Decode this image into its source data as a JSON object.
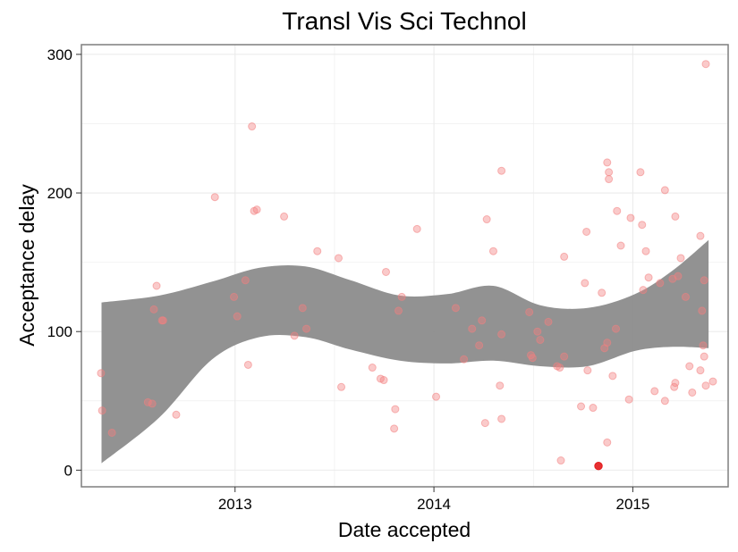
{
  "chart_data": {
    "type": "scatter",
    "title": "Transl Vis Sci Technol",
    "xlabel": "Date accepted",
    "ylabel": "Acceptance delay",
    "x_ticks": [
      {
        "label": "2013",
        "value": "2013-01-01"
      },
      {
        "label": "2014",
        "value": "2014-01-01"
      },
      {
        "label": "2015",
        "value": "2015-01-01"
      }
    ],
    "y_ticks": [
      0,
      100,
      200,
      300
    ],
    "xlim": [
      "2012-03-25",
      "2015-06-25"
    ],
    "ylim": [
      -12,
      307
    ],
    "grid": true,
    "colors": {
      "points": "#f28080",
      "highlight": "#e31a1c",
      "band": "#8c8c8c",
      "grid": "#ebebeb",
      "border": "#7f7f7f"
    },
    "points": [
      {
        "x": "2012-04-30",
        "y": 70
      },
      {
        "x": "2012-05-02",
        "y": 43
      },
      {
        "x": "2012-05-20",
        "y": 27
      },
      {
        "x": "2012-07-25",
        "y": 49
      },
      {
        "x": "2012-08-02",
        "y": 48
      },
      {
        "x": "2012-08-05",
        "y": 116
      },
      {
        "x": "2012-08-10",
        "y": 133
      },
      {
        "x": "2012-08-20",
        "y": 108
      },
      {
        "x": "2012-08-22",
        "y": 108
      },
      {
        "x": "2012-09-15",
        "y": 40
      },
      {
        "x": "2012-11-25",
        "y": 197
      },
      {
        "x": "2012-12-30",
        "y": 125
      },
      {
        "x": "2013-01-05",
        "y": 111
      },
      {
        "x": "2013-01-20",
        "y": 137
      },
      {
        "x": "2013-01-25",
        "y": 76
      },
      {
        "x": "2013-02-01",
        "y": 248
      },
      {
        "x": "2013-02-05",
        "y": 187
      },
      {
        "x": "2013-02-10",
        "y": 188
      },
      {
        "x": "2013-04-01",
        "y": 183
      },
      {
        "x": "2013-04-20",
        "y": 97
      },
      {
        "x": "2013-05-05",
        "y": 117
      },
      {
        "x": "2013-05-12",
        "y": 102
      },
      {
        "x": "2013-06-01",
        "y": 158
      },
      {
        "x": "2013-07-10",
        "y": 153
      },
      {
        "x": "2013-07-15",
        "y": 60
      },
      {
        "x": "2013-09-10",
        "y": 74
      },
      {
        "x": "2013-09-25",
        "y": 66
      },
      {
        "x": "2013-10-01",
        "y": 65
      },
      {
        "x": "2013-10-05",
        "y": 143
      },
      {
        "x": "2013-10-20",
        "y": 30
      },
      {
        "x": "2013-10-22",
        "y": 44
      },
      {
        "x": "2013-10-28",
        "y": 115
      },
      {
        "x": "2013-11-03",
        "y": 125
      },
      {
        "x": "2013-12-01",
        "y": 174
      },
      {
        "x": "2014-01-05",
        "y": 53
      },
      {
        "x": "2014-02-10",
        "y": 117
      },
      {
        "x": "2014-02-25",
        "y": 80
      },
      {
        "x": "2014-03-12",
        "y": 102
      },
      {
        "x": "2014-03-25",
        "y": 90
      },
      {
        "x": "2014-03-30",
        "y": 108
      },
      {
        "x": "2014-04-05",
        "y": 34
      },
      {
        "x": "2014-04-08",
        "y": 181
      },
      {
        "x": "2014-04-20",
        "y": 158
      },
      {
        "x": "2014-05-02",
        "y": 61
      },
      {
        "x": "2014-05-05",
        "y": 37
      },
      {
        "x": "2014-05-05",
        "y": 98
      },
      {
        "x": "2014-05-05",
        "y": 216
      },
      {
        "x": "2014-06-25",
        "y": 114
      },
      {
        "x": "2014-06-28",
        "y": 83
      },
      {
        "x": "2014-07-01",
        "y": 81
      },
      {
        "x": "2014-07-10",
        "y": 100
      },
      {
        "x": "2014-07-15",
        "y": 94
      },
      {
        "x": "2014-07-30",
        "y": 107
      },
      {
        "x": "2014-08-15",
        "y": 75
      },
      {
        "x": "2014-08-20",
        "y": 74
      },
      {
        "x": "2014-08-22",
        "y": 7
      },
      {
        "x": "2014-08-28",
        "y": 154
      },
      {
        "x": "2014-08-28",
        "y": 82
      },
      {
        "x": "2014-09-28",
        "y": 46
      },
      {
        "x": "2014-10-05",
        "y": 135
      },
      {
        "x": "2014-10-08",
        "y": 172
      },
      {
        "x": "2014-10-10",
        "y": 72
      },
      {
        "x": "2014-10-20",
        "y": 45
      },
      {
        "x": "2014-11-05",
        "y": 128
      },
      {
        "x": "2014-11-10",
        "y": 88
      },
      {
        "x": "2014-11-15",
        "y": 20
      },
      {
        "x": "2014-11-15",
        "y": 92
      },
      {
        "x": "2014-11-15",
        "y": 222
      },
      {
        "x": "2014-11-18",
        "y": 215
      },
      {
        "x": "2014-11-18",
        "y": 210
      },
      {
        "x": "2014-11-25",
        "y": 68
      },
      {
        "x": "2014-12-01",
        "y": 102
      },
      {
        "x": "2014-12-03",
        "y": 187
      },
      {
        "x": "2014-12-10",
        "y": 162
      },
      {
        "x": "2014-12-25",
        "y": 51
      },
      {
        "x": "2014-12-28",
        "y": 182
      },
      {
        "x": "2015-01-15",
        "y": 215
      },
      {
        "x": "2015-01-18",
        "y": 177
      },
      {
        "x": "2015-01-20",
        "y": 130
      },
      {
        "x": "2015-01-25",
        "y": 158
      },
      {
        "x": "2015-01-30",
        "y": 139
      },
      {
        "x": "2015-02-10",
        "y": 57
      },
      {
        "x": "2015-02-20",
        "y": 135
      },
      {
        "x": "2015-03-01",
        "y": 50
      },
      {
        "x": "2015-03-01",
        "y": 202
      },
      {
        "x": "2015-03-15",
        "y": 138
      },
      {
        "x": "2015-03-18",
        "y": 60
      },
      {
        "x": "2015-03-20",
        "y": 63
      },
      {
        "x": "2015-03-20",
        "y": 183
      },
      {
        "x": "2015-03-25",
        "y": 140
      },
      {
        "x": "2015-03-30",
        "y": 153
      },
      {
        "x": "2015-04-08",
        "y": 125
      },
      {
        "x": "2015-04-15",
        "y": 75
      },
      {
        "x": "2015-04-20",
        "y": 56
      },
      {
        "x": "2015-05-05",
        "y": 72
      },
      {
        "x": "2015-05-05",
        "y": 169
      },
      {
        "x": "2015-05-08",
        "y": 115
      },
      {
        "x": "2015-05-10",
        "y": 90
      },
      {
        "x": "2015-05-12",
        "y": 82
      },
      {
        "x": "2015-05-12",
        "y": 137
      },
      {
        "x": "2015-05-15",
        "y": 61
      },
      {
        "x": "2015-05-15",
        "y": 293
      },
      {
        "x": "2015-05-28",
        "y": 64
      }
    ],
    "highlight_points": [
      {
        "x": "2014-10-30",
        "y": 3
      }
    ],
    "smooth_band": [
      {
        "x": "2012-05-01",
        "lower": 5,
        "upper": 121
      },
      {
        "x": "2012-08-15",
        "lower": 38,
        "upper": 126
      },
      {
        "x": "2012-11-20",
        "lower": 80,
        "upper": 136
      },
      {
        "x": "2013-02-15",
        "lower": 96,
        "upper": 146
      },
      {
        "x": "2013-05-10",
        "lower": 96,
        "upper": 147
      },
      {
        "x": "2013-08-01",
        "lower": 87,
        "upper": 137
      },
      {
        "x": "2013-10-30",
        "lower": 79,
        "upper": 126
      },
      {
        "x": "2014-01-25",
        "lower": 77,
        "upper": 127
      },
      {
        "x": "2014-04-20",
        "lower": 79,
        "upper": 133
      },
      {
        "x": "2014-07-15",
        "lower": 75,
        "upper": 119
      },
      {
        "x": "2014-10-10",
        "lower": 75,
        "upper": 117
      },
      {
        "x": "2015-01-05",
        "lower": 86,
        "upper": 127
      },
      {
        "x": "2015-03-15",
        "lower": 89,
        "upper": 144
      },
      {
        "x": "2015-05-20",
        "lower": 88,
        "upper": 166
      }
    ]
  }
}
